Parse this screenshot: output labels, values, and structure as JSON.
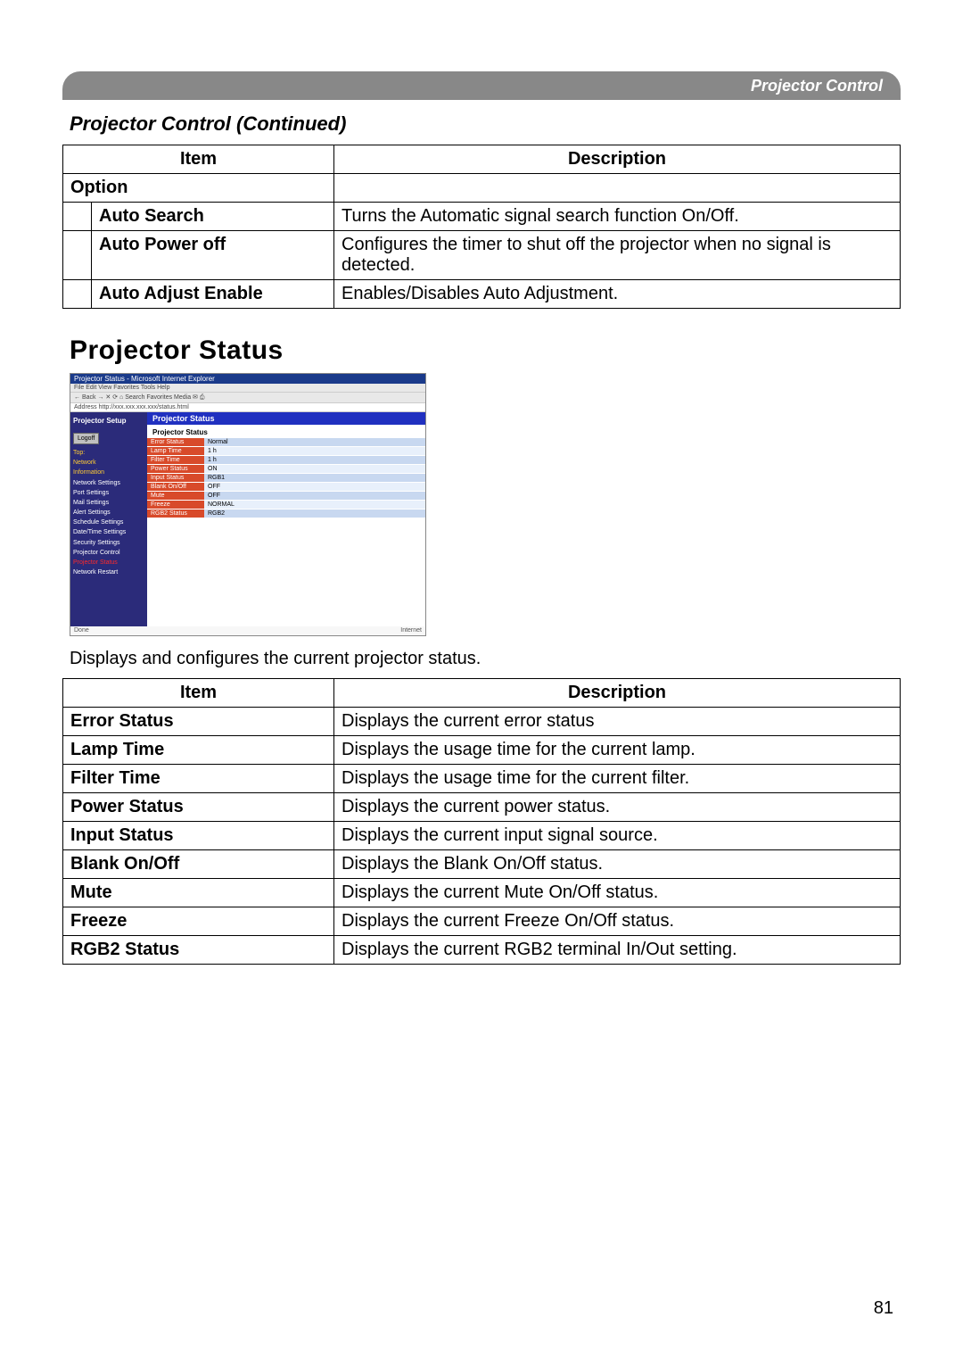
{
  "header_label": "Projector Control",
  "section_continued": "Projector Control (Continued)",
  "table1": {
    "headers": {
      "item": "Item",
      "description": "Description"
    },
    "group_label": "Option",
    "rows": [
      {
        "item": "Auto Search",
        "desc": "Turns the Automatic signal search function On/Off."
      },
      {
        "item": "Auto Power off",
        "desc": "Configures the timer to shut off the projector when no signal is detected."
      },
      {
        "item": "Auto Adjust Enable",
        "desc": "Enables/Disables Auto Adjustment."
      }
    ]
  },
  "heading2": "Projector Status",
  "screenshot": {
    "window_title": "Projector Status - Microsoft Internet Explorer",
    "menu": "File  Edit  View  Favorites  Tools  Help",
    "toolbar": "← Back  →  ✕  ⟳  ⌂  Search  Favorites  Media  ✉  ⎙",
    "address": "Address  http://xxx.xxx.xxx.xxx/status.html",
    "brand": "Projector Setup",
    "logoff": "Logoff",
    "side_hot": [
      "Top:",
      "Network",
      "Information"
    ],
    "side_items": [
      "Network Settings",
      "Port Settings",
      "Mail Settings",
      "Alert Settings",
      "Schedule Settings",
      "Date/Time Settings",
      "Security Settings",
      "Projector Control"
    ],
    "side_active": "Projector Status",
    "side_last": "Network Restart",
    "panel_header": "Projector Status",
    "panel_sub": "Projector Status",
    "rows": [
      {
        "k": "Error Status",
        "v": "Normal"
      },
      {
        "k": "Lamp Time",
        "v": "1 h"
      },
      {
        "k": "Filter Time",
        "v": "1 h"
      },
      {
        "k": "Power Status",
        "v": "ON"
      },
      {
        "k": "Input Status",
        "v": "RGB1"
      },
      {
        "k": "Blank On/Off",
        "v": "OFF"
      },
      {
        "k": "Mute",
        "v": "OFF"
      },
      {
        "k": "Freeze",
        "v": "NORMAL"
      },
      {
        "k": "RGB2 Status",
        "v": "RGB2"
      }
    ],
    "footer_left": "Done",
    "footer_right": "Internet"
  },
  "lead_text": "Displays and configures the current projector status.",
  "table2": {
    "headers": {
      "item": "Item",
      "description": "Description"
    },
    "rows": [
      {
        "item": "Error Status",
        "desc": "Displays the current error status"
      },
      {
        "item": "Lamp Time",
        "desc": "Displays the usage time for the current lamp."
      },
      {
        "item": "Filter Time",
        "desc": "Displays the usage time for the current filter."
      },
      {
        "item": "Power Status",
        "desc": "Displays the current power status."
      },
      {
        "item": "Input Status",
        "desc": "Displays the current input signal source."
      },
      {
        "item": "Blank On/Off",
        "desc": "Displays the Blank On/Off status."
      },
      {
        "item": "Mute",
        "desc": "Displays the current Mute On/Off status."
      },
      {
        "item": "Freeze",
        "desc": "Displays the current Freeze On/Off status."
      },
      {
        "item": "RGB2 Status",
        "desc": "Displays the current RGB2 terminal In/Out setting."
      }
    ]
  },
  "page_number": "81"
}
